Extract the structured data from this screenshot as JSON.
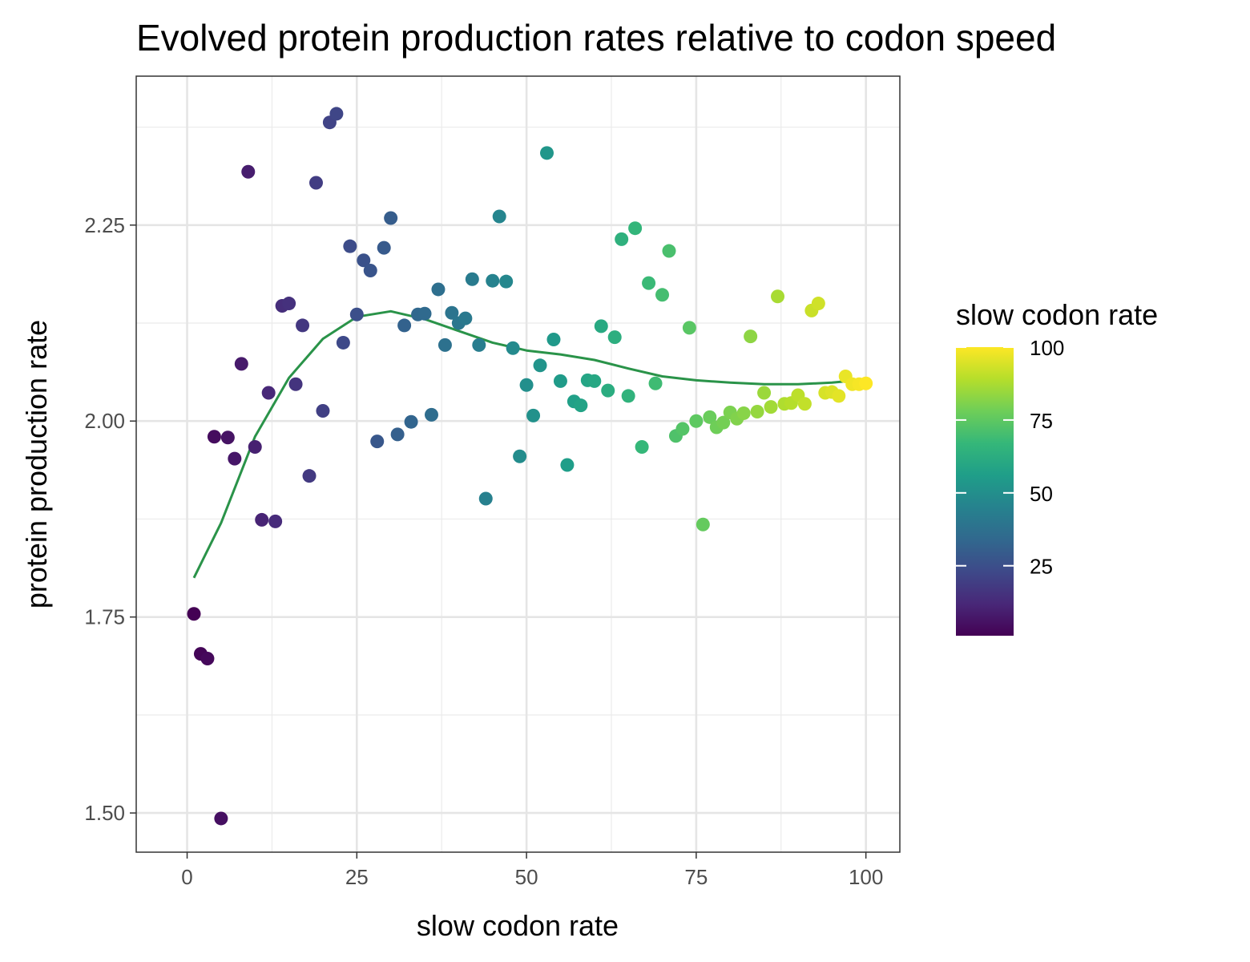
{
  "chart_data": {
    "type": "scatter",
    "title": "Evolved protein production rates relative to codon speed",
    "xlabel": "slow codon rate",
    "ylabel": "protein production rate",
    "xlim": [
      -7.5,
      105
    ],
    "ylim": [
      1.45,
      2.44
    ],
    "x_ticks": [
      0,
      25,
      50,
      75,
      100
    ],
    "x_tick_labels": [
      "0",
      "25",
      "50",
      "75",
      "100"
    ],
    "y_ticks": [
      1.5,
      1.75,
      2.0,
      2.25
    ],
    "y_tick_labels": [
      "1.50",
      "1.75",
      "2.00",
      "2.25"
    ],
    "grid": true,
    "color_scale": "viridis",
    "legend": {
      "title": "slow codon rate",
      "placement": "right",
      "ticks": [
        25,
        50,
        75,
        100
      ],
      "tick_labels": [
        "25",
        "50",
        "75",
        "100"
      ],
      "range": [
        1,
        100
      ]
    },
    "points": [
      {
        "x": 1,
        "y": 1.754
      },
      {
        "x": 2,
        "y": 1.703
      },
      {
        "x": 3,
        "y": 1.697
      },
      {
        "x": 4,
        "y": 1.98
      },
      {
        "x": 5,
        "y": 1.493
      },
      {
        "x": 6,
        "y": 1.979
      },
      {
        "x": 7,
        "y": 1.952
      },
      {
        "x": 8,
        "y": 2.073
      },
      {
        "x": 9,
        "y": 2.318
      },
      {
        "x": 10,
        "y": 1.967
      },
      {
        "x": 11,
        "y": 1.874
      },
      {
        "x": 12,
        "y": 2.036
      },
      {
        "x": 13,
        "y": 1.872
      },
      {
        "x": 14,
        "y": 2.147
      },
      {
        "x": 15,
        "y": 2.15
      },
      {
        "x": 16,
        "y": 2.047
      },
      {
        "x": 17,
        "y": 2.122
      },
      {
        "x": 18,
        "y": 1.93
      },
      {
        "x": 19,
        "y": 2.304
      },
      {
        "x": 20,
        "y": 2.013
      },
      {
        "x": 21,
        "y": 2.381
      },
      {
        "x": 22,
        "y": 2.392
      },
      {
        "x": 23,
        "y": 2.1
      },
      {
        "x": 24,
        "y": 2.223
      },
      {
        "x": 25,
        "y": 2.136
      },
      {
        "x": 26,
        "y": 2.205
      },
      {
        "x": 27,
        "y": 2.192
      },
      {
        "x": 28,
        "y": 1.974
      },
      {
        "x": 29,
        "y": 2.221
      },
      {
        "x": 30,
        "y": 2.259
      },
      {
        "x": 31,
        "y": 1.983
      },
      {
        "x": 32,
        "y": 2.122
      },
      {
        "x": 33,
        "y": 1.999
      },
      {
        "x": 34,
        "y": 2.136
      },
      {
        "x": 35,
        "y": 2.137
      },
      {
        "x": 36,
        "y": 2.008
      },
      {
        "x": 37,
        "y": 2.168
      },
      {
        "x": 38,
        "y": 2.097
      },
      {
        "x": 39,
        "y": 2.138
      },
      {
        "x": 40,
        "y": 2.125
      },
      {
        "x": 41,
        "y": 2.131
      },
      {
        "x": 42,
        "y": 2.181
      },
      {
        "x": 43,
        "y": 2.097
      },
      {
        "x": 44,
        "y": 1.901
      },
      {
        "x": 45,
        "y": 2.179
      },
      {
        "x": 46,
        "y": 2.261
      },
      {
        "x": 47,
        "y": 2.178
      },
      {
        "x": 48,
        "y": 2.093
      },
      {
        "x": 49,
        "y": 1.955
      },
      {
        "x": 50,
        "y": 2.046
      },
      {
        "x": 51,
        "y": 2.007
      },
      {
        "x": 52,
        "y": 2.071
      },
      {
        "x": 53,
        "y": 2.342
      },
      {
        "x": 54,
        "y": 2.104
      },
      {
        "x": 55,
        "y": 2.051
      },
      {
        "x": 56,
        "y": 1.944
      },
      {
        "x": 57,
        "y": 2.025
      },
      {
        "x": 58,
        "y": 2.02
      },
      {
        "x": 59,
        "y": 2.052
      },
      {
        "x": 60,
        "y": 2.051
      },
      {
        "x": 61,
        "y": 2.121
      },
      {
        "x": 62,
        "y": 2.039
      },
      {
        "x": 63,
        "y": 2.107
      },
      {
        "x": 64,
        "y": 2.232
      },
      {
        "x": 65,
        "y": 2.032
      },
      {
        "x": 66,
        "y": 2.246
      },
      {
        "x": 67,
        "y": 1.967
      },
      {
        "x": 68,
        "y": 2.176
      },
      {
        "x": 69,
        "y": 2.048
      },
      {
        "x": 70,
        "y": 2.161
      },
      {
        "x": 71,
        "y": 2.217
      },
      {
        "x": 72,
        "y": 1.981
      },
      {
        "x": 73,
        "y": 1.99
      },
      {
        "x": 74,
        "y": 2.119
      },
      {
        "x": 75,
        "y": 2.0
      },
      {
        "x": 76,
        "y": 1.868
      },
      {
        "x": 77,
        "y": 2.005
      },
      {
        "x": 78,
        "y": 1.992
      },
      {
        "x": 79,
        "y": 1.998
      },
      {
        "x": 80,
        "y": 2.011
      },
      {
        "x": 81,
        "y": 2.003
      },
      {
        "x": 82,
        "y": 2.01
      },
      {
        "x": 83,
        "y": 2.108
      },
      {
        "x": 84,
        "y": 2.012
      },
      {
        "x": 85,
        "y": 2.036
      },
      {
        "x": 86,
        "y": 2.018
      },
      {
        "x": 87,
        "y": 2.159
      },
      {
        "x": 88,
        "y": 2.022
      },
      {
        "x": 89,
        "y": 2.023
      },
      {
        "x": 90,
        "y": 2.033
      },
      {
        "x": 91,
        "y": 2.022
      },
      {
        "x": 92,
        "y": 2.141
      },
      {
        "x": 93,
        "y": 2.15
      },
      {
        "x": 94,
        "y": 2.036
      },
      {
        "x": 95,
        "y": 2.037
      },
      {
        "x": 96,
        "y": 2.032
      },
      {
        "x": 97,
        "y": 2.057
      },
      {
        "x": 98,
        "y": 2.047
      },
      {
        "x": 99,
        "y": 2.047
      },
      {
        "x": 100,
        "y": 2.048
      }
    ],
    "smooth_line": {
      "color": "#2a9349",
      "x": [
        1,
        5,
        10,
        15,
        20,
        25,
        30,
        35,
        40,
        45,
        50,
        55,
        60,
        65,
        70,
        75,
        80,
        85,
        90,
        95,
        100
      ],
      "y": [
        1.8,
        1.87,
        1.98,
        2.055,
        2.105,
        2.133,
        2.14,
        2.13,
        2.115,
        2.1,
        2.09,
        2.085,
        2.078,
        2.067,
        2.057,
        2.052,
        2.049,
        2.047,
        2.047,
        2.049,
        2.053
      ]
    }
  }
}
